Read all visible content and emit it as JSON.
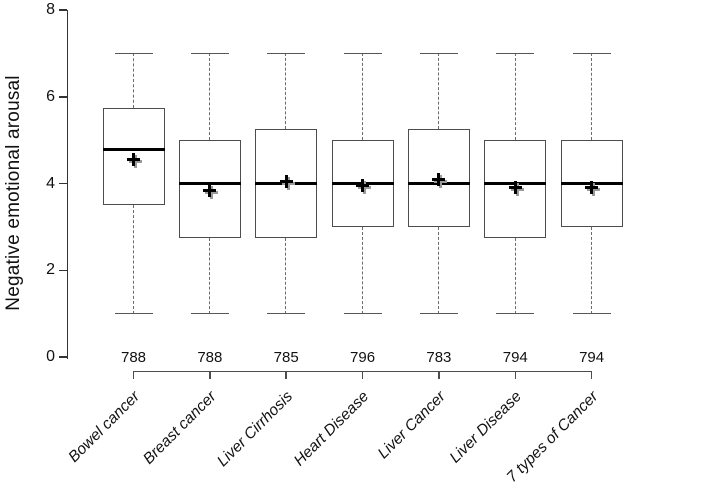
{
  "chart_data": {
    "type": "boxplot",
    "title": "",
    "ylabel": "Negative emotional arousal",
    "xlabel": "",
    "ylim": [
      0,
      8
    ],
    "y_ticks": [
      0,
      2,
      4,
      6,
      8
    ],
    "grid": false,
    "legend": "none",
    "categories": [
      "Bowel cancer",
      "Breast cancer",
      "Liver Cirrhosis",
      "Heart Disease",
      "Liver Cancer",
      "Liver Disease",
      "7 types of Cancer"
    ],
    "sample_sizes": [
      "788",
      "788",
      "785",
      "796",
      "783",
      "794",
      "794"
    ],
    "boxes": [
      {
        "label": "Bowel cancer",
        "n": "788",
        "whisker_low": 1,
        "q1": 3.5,
        "median": 4.78,
        "q3": 5.75,
        "whisker_high": 7,
        "mean": 4.55
      },
      {
        "label": "Breast cancer",
        "n": "788",
        "whisker_low": 1,
        "q1": 2.75,
        "median": 4.0,
        "q3": 5.0,
        "whisker_high": 7,
        "mean": 3.85
      },
      {
        "label": "Liver Cirrhosis",
        "n": "785",
        "whisker_low": 1,
        "q1": 2.75,
        "median": 4.0,
        "q3": 5.25,
        "whisker_high": 7,
        "mean": 4.05
      },
      {
        "label": "Heart Disease",
        "n": "796",
        "whisker_low": 1,
        "q1": 3.0,
        "median": 4.0,
        "q3": 5.0,
        "whisker_high": 7,
        "mean": 3.95
      },
      {
        "label": "Liver Cancer",
        "n": "783",
        "whisker_low": 1,
        "q1": 3.0,
        "median": 4.0,
        "q3": 5.25,
        "whisker_high": 7,
        "mean": 4.1
      },
      {
        "label": "Liver Disease",
        "n": "794",
        "whisker_low": 1,
        "q1": 2.75,
        "median": 4.0,
        "q3": 5.0,
        "whisker_high": 7,
        "mean": 3.9
      },
      {
        "label": "7 types of Cancer",
        "n": "794",
        "whisker_low": 1,
        "q1": 3.0,
        "median": 4.0,
        "q3": 5.0,
        "whisker_high": 7,
        "mean": 3.9
      }
    ],
    "mean_marker": "plus",
    "colors": {
      "box_border": "#4d4d4d",
      "median": "#000000",
      "whisker": "#6b6b6b",
      "whisker_cap": "#565656",
      "mean_marker": "#000000",
      "mean_marker_shadow": "#9a9a9a",
      "text": "#111111",
      "background": "#ffffff"
    }
  }
}
